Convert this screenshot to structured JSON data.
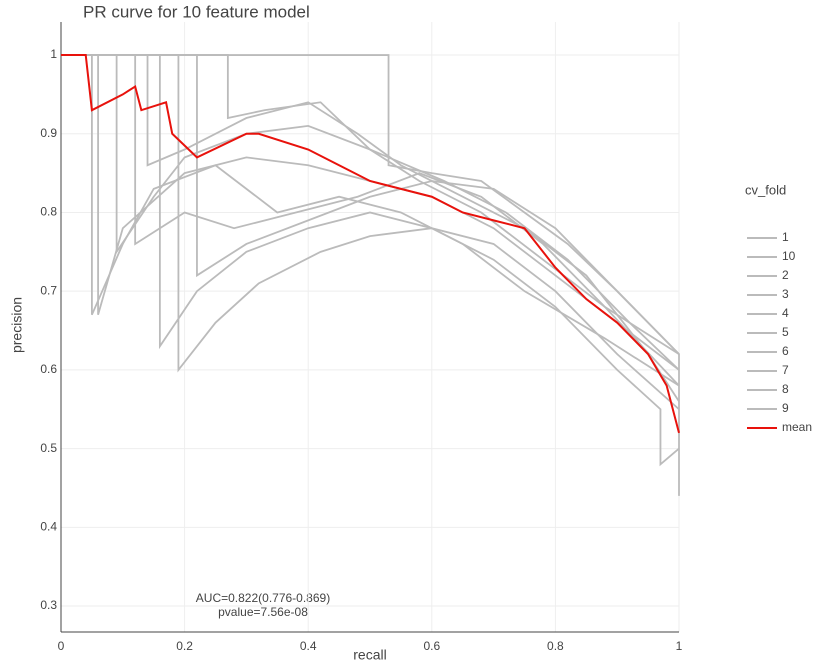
{
  "chart_data": {
    "type": "line",
    "title": "PR curve for 10 feature model",
    "x_label": "recall",
    "y_label": "precision",
    "xlim": [
      0,
      1
    ],
    "ylim": [
      0.267,
      1.042
    ],
    "xticks": [
      0,
      0.2,
      0.4,
      0.6,
      0.8,
      1
    ],
    "yticks": [
      0.3,
      0.4,
      0.5,
      0.6,
      0.7,
      0.8,
      0.9,
      1
    ],
    "grid": true,
    "legend_title": "cv_fold",
    "legend_position": "right",
    "annotations": [
      "AUC=0.822(0.776-0.869)",
      "pvalue=7.56e-08"
    ],
    "series": [
      {
        "name": "1",
        "color": "#bbbbbb",
        "x": [
          0,
          0.53,
          0.53,
          0.6,
          0.68,
          0.75,
          0.82,
          0.9,
          0.95,
          1
        ],
        "values": [
          1,
          1,
          0.86,
          0.85,
          0.84,
          0.8,
          0.76,
          0.7,
          0.66,
          0.62
        ]
      },
      {
        "name": "10",
        "color": "#bbbbbb",
        "x": [
          0,
          0.06,
          0.06,
          0.1,
          0.2,
          0.3,
          0.4,
          0.5,
          0.6,
          0.7,
          0.8,
          0.9,
          1
        ],
        "values": [
          1,
          1,
          0.67,
          0.78,
          0.85,
          0.87,
          0.86,
          0.84,
          0.82,
          0.78,
          0.72,
          0.66,
          0.6
        ]
      },
      {
        "name": "2",
        "color": "#bbbbbb",
        "x": [
          0,
          0.14,
          0.14,
          0.2,
          0.3,
          0.4,
          0.48,
          0.55,
          0.65,
          0.75,
          0.85,
          0.95,
          1
        ],
        "values": [
          1,
          1,
          0.86,
          0.88,
          0.92,
          0.94,
          0.9,
          0.86,
          0.82,
          0.78,
          0.72,
          0.62,
          0.56
        ]
      },
      {
        "name": "3",
        "color": "#bbbbbb",
        "x": [
          0,
          0.19,
          0.19,
          0.25,
          0.32,
          0.42,
          0.5,
          0.6,
          0.7,
          0.8,
          0.9,
          1
        ],
        "values": [
          1,
          1,
          0.6,
          0.66,
          0.71,
          0.75,
          0.77,
          0.78,
          0.76,
          0.7,
          0.62,
          0.55
        ]
      },
      {
        "name": "4",
        "color": "#bbbbbb",
        "x": [
          0,
          0.16,
          0.16,
          0.22,
          0.3,
          0.4,
          0.5,
          0.6,
          0.7,
          0.8,
          0.9,
          0.97,
          0.97,
          1
        ],
        "values": [
          1,
          1,
          0.63,
          0.7,
          0.75,
          0.78,
          0.8,
          0.78,
          0.74,
          0.68,
          0.6,
          0.55,
          0.48,
          0.5
        ]
      },
      {
        "name": "5",
        "color": "#bbbbbb",
        "x": [
          0,
          0.09,
          0.09,
          0.15,
          0.2,
          0.3,
          0.4,
          0.5,
          0.62,
          0.72,
          0.82,
          0.92,
          1
        ],
        "values": [
          1,
          1,
          0.75,
          0.82,
          0.87,
          0.9,
          0.91,
          0.88,
          0.84,
          0.8,
          0.74,
          0.66,
          0.6
        ]
      },
      {
        "name": "6",
        "color": "#bbbbbb",
        "x": [
          0,
          0.05,
          0.05,
          0.1,
          0.15,
          0.25,
          0.35,
          0.45,
          0.55,
          0.65,
          0.75,
          0.88,
          1
        ],
        "values": [
          1,
          1,
          0.67,
          0.76,
          0.83,
          0.86,
          0.8,
          0.82,
          0.8,
          0.76,
          0.7,
          0.64,
          0.58
        ]
      },
      {
        "name": "7",
        "color": "#bbbbbb",
        "x": [
          0,
          0.27,
          0.27,
          0.33,
          0.42,
          0.5,
          0.58,
          0.68,
          0.78,
          0.88,
          1
        ],
        "values": [
          1,
          1,
          0.92,
          0.93,
          0.94,
          0.88,
          0.84,
          0.8,
          0.74,
          0.68,
          0.62
        ]
      },
      {
        "name": "8",
        "color": "#bbbbbb",
        "x": [
          0,
          0.22,
          0.22,
          0.3,
          0.4,
          0.5,
          0.6,
          0.7,
          0.8,
          0.9,
          1,
          1
        ],
        "values": [
          1,
          1,
          0.72,
          0.76,
          0.79,
          0.82,
          0.84,
          0.83,
          0.78,
          0.7,
          0.62,
          0.44
        ]
      },
      {
        "name": "9",
        "color": "#bbbbbb",
        "x": [
          0,
          0.12,
          0.12,
          0.2,
          0.28,
          0.38,
          0.48,
          0.58,
          0.68,
          0.78,
          0.88,
          1
        ],
        "values": [
          1,
          1,
          0.76,
          0.8,
          0.78,
          0.8,
          0.82,
          0.85,
          0.82,
          0.76,
          0.68,
          0.58
        ]
      },
      {
        "name": "mean",
        "color": "#e8120c",
        "x": [
          0,
          0.04,
          0.05,
          0.1,
          0.12,
          0.13,
          0.17,
          0.18,
          0.22,
          0.3,
          0.32,
          0.4,
          0.45,
          0.5,
          0.6,
          0.65,
          0.7,
          0.75,
          0.8,
          0.85,
          0.9,
          0.95,
          0.98,
          1
        ],
        "values": [
          1,
          1,
          0.93,
          0.95,
          0.96,
          0.93,
          0.94,
          0.9,
          0.87,
          0.9,
          0.9,
          0.88,
          0.86,
          0.84,
          0.82,
          0.8,
          0.79,
          0.78,
          0.73,
          0.69,
          0.66,
          0.62,
          0.58,
          0.52
        ]
      }
    ]
  }
}
